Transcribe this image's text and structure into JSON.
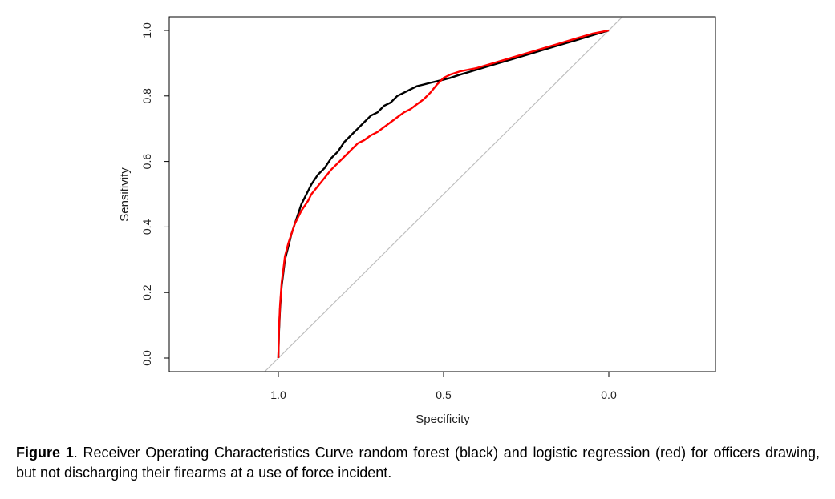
{
  "chart_data": {
    "type": "line",
    "title": "",
    "xlabel": "Specificity",
    "ylabel": "Sensitivity",
    "x_reversed": true,
    "xlim": [
      1.33,
      -0.33
    ],
    "ylim": [
      0,
      1
    ],
    "x_ticks": [
      1.0,
      0.5,
      0.0
    ],
    "x_tick_labels": [
      "1.0",
      "0.5",
      "0.0"
    ],
    "y_ticks": [
      0.0,
      0.2,
      0.4,
      0.6,
      0.8,
      1.0
    ],
    "y_tick_labels": [
      "0.0",
      "0.2",
      "0.4",
      "0.6",
      "0.8",
      "1.0"
    ],
    "grid": false,
    "reference_line": {
      "from": [
        1,
        0
      ],
      "to": [
        0,
        1
      ],
      "color": "#bebebe"
    },
    "series": [
      {
        "color": "#000000",
        "x": [
          1.0,
          0.998,
          0.995,
          0.99,
          0.985,
          0.98,
          0.97,
          0.96,
          0.95,
          0.94,
          0.93,
          0.92,
          0.91,
          0.9,
          0.88,
          0.86,
          0.84,
          0.82,
          0.8,
          0.78,
          0.76,
          0.74,
          0.72,
          0.7,
          0.68,
          0.66,
          0.64,
          0.62,
          0.6,
          0.58,
          0.56,
          0.54,
          0.52,
          0.5,
          0.48,
          0.45,
          0.4,
          0.35,
          0.3,
          0.25,
          0.2,
          0.15,
          0.1,
          0.05,
          0.0
        ],
        "y": [
          0.0,
          0.08,
          0.15,
          0.22,
          0.26,
          0.3,
          0.34,
          0.38,
          0.41,
          0.44,
          0.47,
          0.49,
          0.51,
          0.53,
          0.56,
          0.58,
          0.61,
          0.63,
          0.66,
          0.68,
          0.7,
          0.72,
          0.74,
          0.75,
          0.77,
          0.78,
          0.8,
          0.81,
          0.82,
          0.83,
          0.835,
          0.84,
          0.845,
          0.85,
          0.855,
          0.865,
          0.88,
          0.895,
          0.91,
          0.925,
          0.94,
          0.955,
          0.97,
          0.985,
          1.0
        ]
      },
      {
        "color": "#ff0000",
        "x": [
          1.0,
          0.998,
          0.995,
          0.99,
          0.985,
          0.98,
          0.97,
          0.96,
          0.95,
          0.94,
          0.93,
          0.92,
          0.91,
          0.9,
          0.88,
          0.86,
          0.84,
          0.82,
          0.8,
          0.78,
          0.76,
          0.74,
          0.72,
          0.7,
          0.68,
          0.66,
          0.64,
          0.62,
          0.6,
          0.58,
          0.56,
          0.54,
          0.52,
          0.5,
          0.48,
          0.45,
          0.4,
          0.35,
          0.3,
          0.25,
          0.2,
          0.15,
          0.1,
          0.05,
          0.0
        ],
        "y": [
          0.0,
          0.09,
          0.16,
          0.23,
          0.27,
          0.31,
          0.35,
          0.38,
          0.41,
          0.43,
          0.45,
          0.465,
          0.48,
          0.5,
          0.525,
          0.55,
          0.575,
          0.595,
          0.615,
          0.635,
          0.655,
          0.665,
          0.68,
          0.69,
          0.705,
          0.72,
          0.735,
          0.75,
          0.76,
          0.775,
          0.79,
          0.81,
          0.835,
          0.855,
          0.865,
          0.875,
          0.885,
          0.9,
          0.915,
          0.93,
          0.945,
          0.96,
          0.975,
          0.99,
          1.0
        ]
      }
    ]
  },
  "caption": {
    "label": "Figure 1",
    "text": ". Receiver Operating Characteristics Curve random forest (black) and logistic regression (red) for officers drawing, but not discharging their firearms at a use of force incident."
  }
}
